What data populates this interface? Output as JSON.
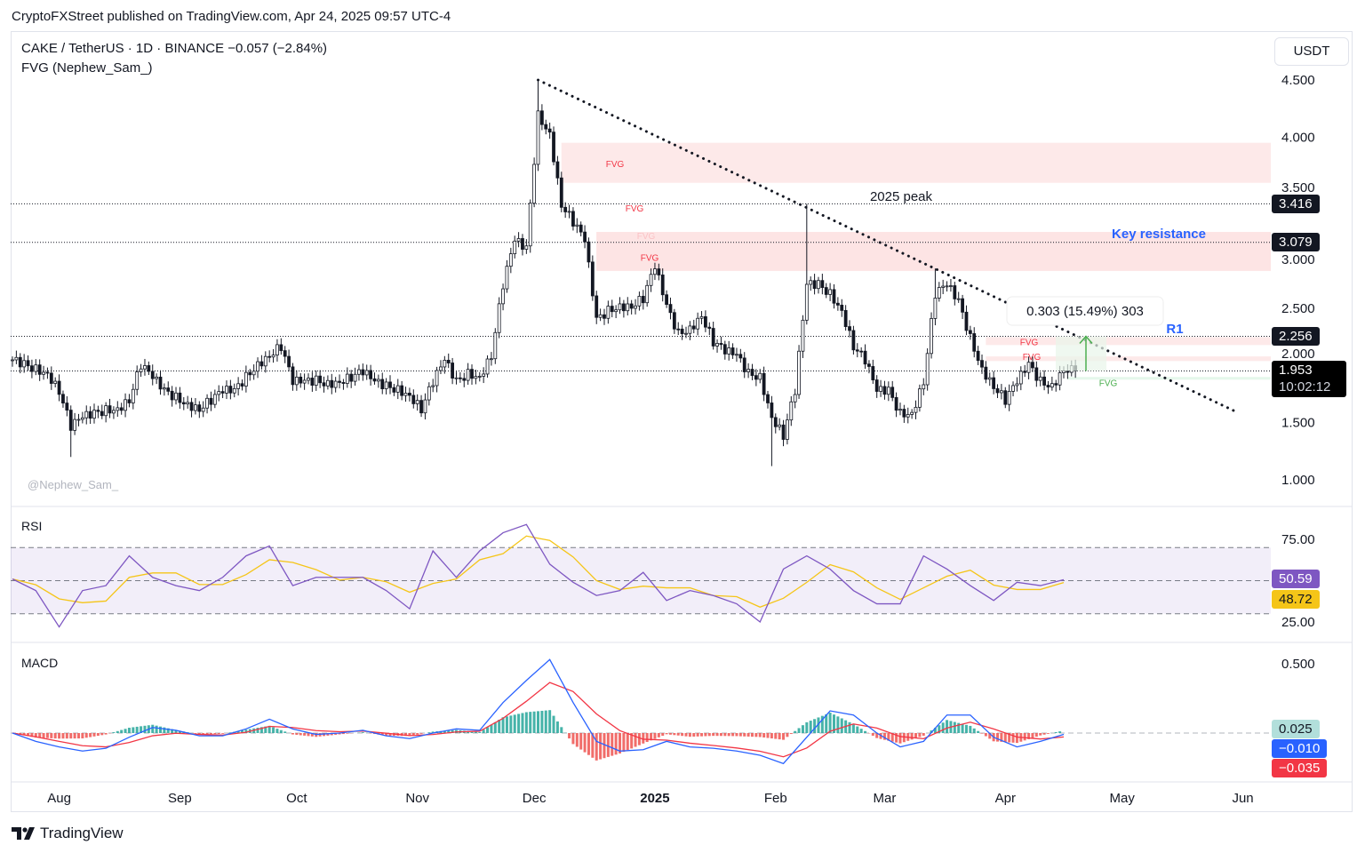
{
  "publisher": "CryptoFXStreet published on TradingView.com, Apr 24, 2025 09:57 UTC-4",
  "legend": {
    "symbol_line": "CAKE / TetherUS · 1D · BINANCE  −0.057 (−2.84%)",
    "indicator": "FVG (Nephew_Sam_)"
  },
  "currency_button": "USDT",
  "watermark_handle": "@Nephew_Sam_",
  "brand": "TradingView",
  "colors": {
    "fvg_bear": "#fde3e4",
    "fvg_bull": "#dff5e6",
    "rsi_line": "#7e57c2",
    "rsi_ma": "#f5c518",
    "macd": "#2962ff",
    "signal": "#f23645",
    "hist_up": "#26a69a",
    "hist_down": "#ef5350",
    "annotation_blue": "#2962ff"
  },
  "chart_data": [
    {
      "type": "candlestick",
      "title": "CAKE / TetherUS · 1D · BINANCE",
      "x_start": "2024-07-20",
      "x_step_days": 3,
      "closes": [
        2.05,
        2.01,
        1.97,
        1.93,
        1.78,
        1.47,
        1.55,
        1.58,
        1.61,
        1.62,
        1.7,
        2.01,
        1.9,
        1.78,
        1.72,
        1.66,
        1.62,
        1.7,
        1.78,
        1.78,
        1.9,
        2.01,
        2.09,
        2.17,
        1.86,
        1.86,
        1.87,
        1.84,
        1.86,
        1.9,
        1.95,
        1.86,
        1.82,
        1.79,
        1.74,
        1.62,
        1.86,
        2.05,
        1.86,
        1.93,
        1.9,
        2.09,
        2.71,
        3.1,
        3.02,
        4.19,
        4.03,
        3.41,
        3.26,
        3.1,
        2.4,
        2.48,
        2.52,
        2.52,
        2.59,
        2.87,
        2.52,
        2.28,
        2.32,
        2.44,
        2.21,
        2.13,
        2.09,
        1.93,
        1.9,
        1.55,
        1.39,
        1.78,
        2.71,
        2.71,
        2.63,
        2.48,
        2.17,
        2.05,
        1.78,
        1.78,
        1.58,
        1.58,
        1.86,
        2.63,
        2.71,
        2.56,
        2.24,
        1.97,
        1.82,
        1.7,
        1.86,
        2.01,
        1.86,
        1.82,
        1.97,
        1.953
      ],
      "extremes": [
        {
          "index": 5,
          "low": 1.2
        },
        {
          "index": 45,
          "high": 4.5
        },
        {
          "index": 65,
          "low": 1.12
        },
        {
          "index": 68,
          "high": 3.416
        },
        {
          "index": 79,
          "high": 2.85
        }
      ],
      "y_ticks": [
        "4.500",
        "4.000",
        "3.500",
        "3.000",
        "2.500",
        "2.000",
        "1.500",
        "1.000"
      ],
      "y_tick_values": [
        4.5,
        4.0,
        3.5,
        3.0,
        2.5,
        2.0,
        1.5,
        1.0
      ],
      "ylim": [
        1.0,
        4.5
      ],
      "x_ticks": [
        {
          "label": "Aug",
          "day": 12
        },
        {
          "label": "Sep",
          "day": 43
        },
        {
          "label": "Oct",
          "day": 73
        },
        {
          "label": "Nov",
          "day": 104
        },
        {
          "label": "Dec",
          "day": 134
        },
        {
          "label": "2025",
          "day": 165,
          "bold": true
        },
        {
          "label": "Feb",
          "day": 196
        },
        {
          "label": "Mar",
          "day": 224
        },
        {
          "label": "Apr",
          "day": 255
        },
        {
          "label": "May",
          "day": 285
        },
        {
          "label": "Jun",
          "day": 316
        }
      ],
      "levels": [
        {
          "value": 3.416,
          "label": "3.416"
        },
        {
          "value": 3.079,
          "label": "3.079"
        },
        {
          "value": 2.256,
          "label": "2.256"
        },
        {
          "value": 1.953,
          "label": "1.953",
          "countdown": "10:02:12"
        }
      ],
      "fvg_zones": [
        {
          "low": 3.6,
          "high": 3.95,
          "start_day": 141,
          "kind": "bear",
          "label": "FVG",
          "label_price": 3.77
        },
        {
          "low": 2.83,
          "high": 3.17,
          "start_day": 150,
          "kind": "bear",
          "label": "FVG",
          "label_price": 3.38
        },
        {
          "low": 2.83,
          "high": 3.17,
          "start_day": 150,
          "kind": "bear",
          "label": "FVG",
          "label_price": 3.14
        },
        {
          "low": 2.83,
          "high": 3.17,
          "start_day": 150,
          "kind": "bear",
          "label": "FVG",
          "label_price": 2.95
        },
        {
          "low": 2.18,
          "high": 2.25,
          "start_day": 250,
          "kind": "bear",
          "label": "FVG",
          "label_price": 2.21
        },
        {
          "low": 2.04,
          "high": 2.08,
          "start_day": 250,
          "kind": "bear",
          "label": "FVG",
          "label_price": 2.08
        },
        {
          "low": 1.88,
          "high": 1.9,
          "start_day": 271,
          "kind": "bull",
          "label": "FVG",
          "label_price": 1.85
        }
      ],
      "trendline": {
        "from": {
          "day": 135,
          "price": 4.5
        },
        "to": {
          "day": 314,
          "price": 1.6
        }
      },
      "annotations": [
        {
          "text": "2025 peak",
          "day": 232,
          "price": 3.45
        },
        {
          "text": "Key resistance",
          "day": 286,
          "price": 3.15,
          "color": "blue"
        },
        {
          "text": "R1",
          "day": 299,
          "price": 2.35,
          "color": "blue"
        }
      ],
      "measure": {
        "from_price": 1.953,
        "to_price": 2.256,
        "label": "0.303 (15.49%) 303"
      }
    },
    {
      "type": "line",
      "title": "RSI",
      "x_step_days": 6,
      "rsi": [
        51,
        44,
        22,
        44,
        47,
        65,
        52,
        47,
        44,
        52,
        65,
        71,
        47,
        52,
        52,
        52,
        44,
        33,
        68,
        52,
        68,
        79,
        84,
        60,
        49,
        41,
        44,
        55,
        38,
        44,
        41,
        36,
        25,
        57,
        65,
        57,
        44,
        36,
        36,
        65,
        57,
        47,
        38,
        49,
        47,
        50.59
      ],
      "y_ticks": [
        "75.00",
        "25.00"
      ],
      "bands": [
        70,
        50,
        30
      ],
      "ylim": [
        18,
        90
      ],
      "last_rsi": "50.59",
      "last_ma": "48.72"
    },
    {
      "type": "line",
      "title": "MACD",
      "x_step_days": 6,
      "macd": [
        0,
        -0.06,
        -0.1,
        -0.13,
        -0.11,
        -0.03,
        0.04,
        0.02,
        -0.02,
        -0.02,
        0.03,
        0.1,
        0.03,
        -0.01,
        0,
        0.02,
        -0.02,
        -0.04,
        0,
        0.03,
        0.02,
        0.22,
        0.38,
        0.53,
        0.22,
        -0.06,
        -0.13,
        -0.12,
        -0.06,
        -0.1,
        -0.11,
        -0.13,
        -0.16,
        -0.22,
        -0.03,
        0.16,
        0.13,
        0,
        -0.1,
        -0.06,
        0.13,
        0.13,
        -0.03,
        -0.1,
        -0.06,
        -0.01
      ],
      "y_ticks": [
        "0.500"
      ],
      "ylim": [
        -0.3,
        0.55
      ],
      "last_hist": "0.025",
      "last_macd": "−0.010",
      "last_signal": "−0.035"
    }
  ]
}
